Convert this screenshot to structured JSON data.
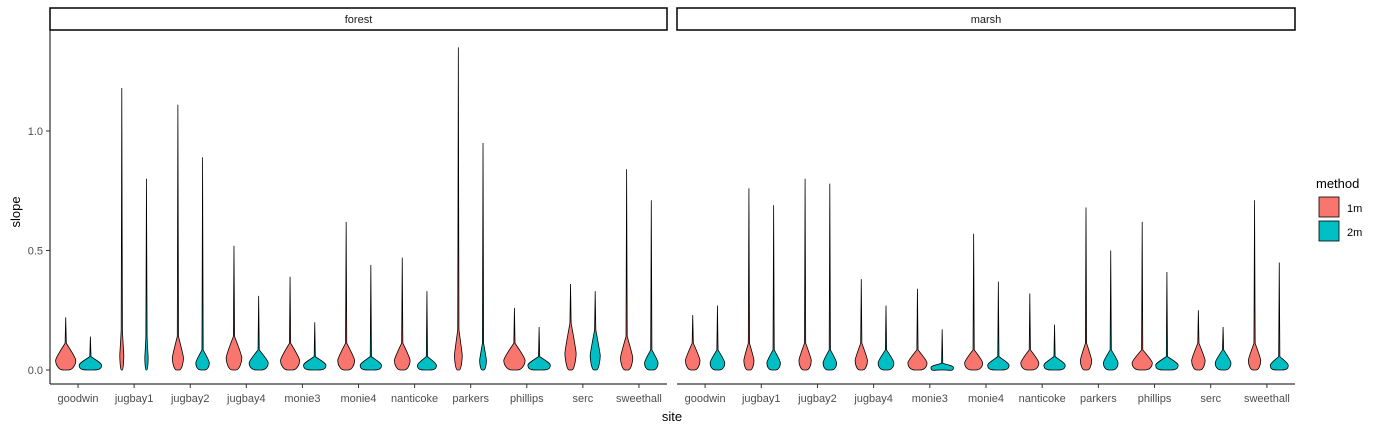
{
  "chart_data": {
    "type": "violin",
    "xlabel": "site",
    "ylabel": "slope",
    "facet_var": "habitat",
    "panels": [
      "forest",
      "marsh"
    ],
    "categories": [
      "goodwin",
      "jugbay1",
      "jugbay2",
      "jugbay4",
      "monie3",
      "monie4",
      "nanticoke",
      "parkers",
      "phillips",
      "serc",
      "sweethall"
    ],
    "yticks": [
      0.0,
      0.5,
      1.0
    ],
    "ytick_labels": [
      "0.0",
      "0.5",
      "1.0"
    ],
    "ylim": [
      -0.06,
      1.42
    ],
    "grid": false,
    "legend": {
      "title": "method",
      "placement": "right",
      "entries": [
        {
          "label": "1m",
          "color": "#F8766D"
        },
        {
          "label": "2m",
          "color": "#00BFC4"
        }
      ]
    },
    "series": [
      {
        "name": "1m",
        "color": "#F8766D",
        "panels": {
          "forest": [
            {
              "max": 0.22,
              "mid": 0.04,
              "width": 0.9
            },
            {
              "max": 1.18,
              "mid": 0.06,
              "width": 0.18
            },
            {
              "max": 1.11,
              "mid": 0.05,
              "width": 0.5
            },
            {
              "max": 0.52,
              "mid": 0.05,
              "width": 0.7
            },
            {
              "max": 0.39,
              "mid": 0.04,
              "width": 0.85
            },
            {
              "max": 0.62,
              "mid": 0.04,
              "width": 0.75
            },
            {
              "max": 0.47,
              "mid": 0.04,
              "width": 0.7
            },
            {
              "max": 1.35,
              "mid": 0.06,
              "width": 0.35
            },
            {
              "max": 0.26,
              "mid": 0.04,
              "width": 0.95
            },
            {
              "max": 0.36,
              "mid": 0.07,
              "width": 0.5
            },
            {
              "max": 0.84,
              "mid": 0.05,
              "width": 0.55
            }
          ],
          "marsh": [
            {
              "max": 0.23,
              "mid": 0.04,
              "width": 0.65
            },
            {
              "max": 0.76,
              "mid": 0.04,
              "width": 0.45
            },
            {
              "max": 0.8,
              "mid": 0.04,
              "width": 0.55
            },
            {
              "max": 0.38,
              "mid": 0.04,
              "width": 0.55
            },
            {
              "max": 0.34,
              "mid": 0.03,
              "width": 0.85
            },
            {
              "max": 0.57,
              "mid": 0.03,
              "width": 0.8
            },
            {
              "max": 0.32,
              "mid": 0.03,
              "width": 0.8
            },
            {
              "max": 0.68,
              "mid": 0.04,
              "width": 0.5
            },
            {
              "max": 0.62,
              "mid": 0.03,
              "width": 0.9
            },
            {
              "max": 0.25,
              "mid": 0.04,
              "width": 0.6
            },
            {
              "max": 0.71,
              "mid": 0.04,
              "width": 0.55
            }
          ]
        }
      },
      {
        "name": "2m",
        "color": "#00BFC4",
        "panels": {
          "forest": [
            {
              "max": 0.14,
              "mid": 0.02,
              "width": 1.0
            },
            {
              "max": 0.8,
              "mid": 0.05,
              "width": 0.15
            },
            {
              "max": 0.89,
              "mid": 0.03,
              "width": 0.6
            },
            {
              "max": 0.31,
              "mid": 0.03,
              "width": 0.85
            },
            {
              "max": 0.2,
              "mid": 0.02,
              "width": 1.0
            },
            {
              "max": 0.44,
              "mid": 0.02,
              "width": 0.95
            },
            {
              "max": 0.33,
              "mid": 0.02,
              "width": 0.85
            },
            {
              "max": 0.95,
              "mid": 0.04,
              "width": 0.3
            },
            {
              "max": 0.18,
              "mid": 0.02,
              "width": 1.0
            },
            {
              "max": 0.33,
              "mid": 0.06,
              "width": 0.45
            },
            {
              "max": 0.71,
              "mid": 0.03,
              "width": 0.6
            }
          ],
          "marsh": [
            {
              "max": 0.27,
              "mid": 0.03,
              "width": 0.65
            },
            {
              "max": 0.69,
              "mid": 0.03,
              "width": 0.6
            },
            {
              "max": 0.78,
              "mid": 0.03,
              "width": 0.6
            },
            {
              "max": 0.27,
              "mid": 0.03,
              "width": 0.7
            },
            {
              "max": 0.17,
              "mid": 0.01,
              "width": 1.0
            },
            {
              "max": 0.37,
              "mid": 0.02,
              "width": 0.95
            },
            {
              "max": 0.19,
              "mid": 0.02,
              "width": 0.95
            },
            {
              "max": 0.5,
              "mid": 0.03,
              "width": 0.65
            },
            {
              "max": 0.41,
              "mid": 0.02,
              "width": 1.0
            },
            {
              "max": 0.18,
              "mid": 0.03,
              "width": 0.7
            },
            {
              "max": 0.45,
              "mid": 0.02,
              "width": 0.8
            }
          ]
        }
      }
    ]
  }
}
